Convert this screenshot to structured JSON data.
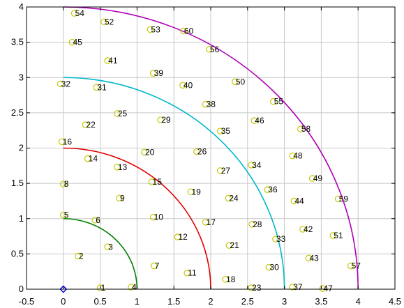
{
  "chart_data": {
    "type": "scatter",
    "title": "",
    "xlabel": "",
    "ylabel": "",
    "xlim": [
      -0.5,
      4.5
    ],
    "ylim": [
      0,
      4
    ],
    "grid": true,
    "x_ticks": [
      -0.5,
      0,
      0.5,
      1,
      1.5,
      2,
      2.5,
      3,
      3.5,
      4,
      4.5
    ],
    "y_ticks": [
      0,
      0.5,
      1,
      1.5,
      2,
      2.5,
      3,
      3.5,
      4
    ],
    "x_tick_labels": [
      "-0.5",
      "0",
      "0.5",
      "1",
      "1.5",
      "2",
      "2.5",
      "3",
      "3.5",
      "4",
      "4.5"
    ],
    "y_tick_labels": [
      "0",
      "0.5",
      "1",
      "1.5",
      "2",
      "2.5",
      "3",
      "3.5",
      "4"
    ],
    "origin_marker": {
      "x": 0,
      "y": 0,
      "shape": "diamond",
      "color": "#0000cc"
    },
    "arcs": [
      {
        "radius": 1,
        "color": "#007f00"
      },
      {
        "radius": 2,
        "color": "#e00000"
      },
      {
        "radius": 3,
        "color": "#00b8c8"
      },
      {
        "radius": 4,
        "color": "#b000b8"
      }
    ],
    "point_color": "#c8c800",
    "points": [
      {
        "label": "1",
        "x": 0.5,
        "y": 0.02
      },
      {
        "label": "2",
        "x": 0.2,
        "y": 0.47
      },
      {
        "label": "3",
        "x": 0.6,
        "y": 0.6
      },
      {
        "label": "4",
        "x": 0.92,
        "y": 0.03
      },
      {
        "label": "5",
        "x": 0.0,
        "y": 1.05
      },
      {
        "label": "6",
        "x": 0.43,
        "y": 0.98
      },
      {
        "label": "7",
        "x": 1.23,
        "y": 0.33
      },
      {
        "label": "8",
        "x": 0.0,
        "y": 1.49
      },
      {
        "label": "9",
        "x": 0.76,
        "y": 1.29
      },
      {
        "label": "10",
        "x": 1.22,
        "y": 1.02
      },
      {
        "label": "11",
        "x": 1.68,
        "y": 0.23
      },
      {
        "label": "12",
        "x": 1.55,
        "y": 0.74
      },
      {
        "label": "13",
        "x": 0.73,
        "y": 1.73
      },
      {
        "label": "14",
        "x": 0.33,
        "y": 1.85
      },
      {
        "label": "15",
        "x": 1.2,
        "y": 1.52
      },
      {
        "label": "16",
        "x": -0.02,
        "y": 2.09
      },
      {
        "label": "17",
        "x": 1.93,
        "y": 0.95
      },
      {
        "label": "18",
        "x": 2.2,
        "y": 0.14
      },
      {
        "label": "19",
        "x": 1.73,
        "y": 1.38
      },
      {
        "label": "20",
        "x": 1.1,
        "y": 1.94
      },
      {
        "label": "21",
        "x": 2.25,
        "y": 0.62
      },
      {
        "label": "22",
        "x": 0.3,
        "y": 2.33
      },
      {
        "label": "23",
        "x": 2.55,
        "y": 0.02
      },
      {
        "label": "24",
        "x": 2.24,
        "y": 1.29
      },
      {
        "label": "25",
        "x": 0.73,
        "y": 2.49
      },
      {
        "label": "26",
        "x": 1.81,
        "y": 1.95
      },
      {
        "label": "27",
        "x": 2.13,
        "y": 1.68
      },
      {
        "label": "28",
        "x": 2.56,
        "y": 0.92
      },
      {
        "label": "29",
        "x": 1.32,
        "y": 2.4
      },
      {
        "label": "30",
        "x": 2.79,
        "y": 0.31
      },
      {
        "label": "31",
        "x": 0.45,
        "y": 2.86
      },
      {
        "label": "32",
        "x": -0.04,
        "y": 2.91
      },
      {
        "label": "33",
        "x": 2.88,
        "y": 0.71
      },
      {
        "label": "34",
        "x": 2.55,
        "y": 1.76
      },
      {
        "label": "35",
        "x": 2.13,
        "y": 2.24
      },
      {
        "label": "36",
        "x": 2.77,
        "y": 1.41
      },
      {
        "label": "37",
        "x": 3.11,
        "y": 0.03
      },
      {
        "label": "38",
        "x": 1.93,
        "y": 2.62
      },
      {
        "label": "39",
        "x": 1.22,
        "y": 3.06
      },
      {
        "label": "40",
        "x": 1.62,
        "y": 2.89
      },
      {
        "label": "41",
        "x": 0.6,
        "y": 3.24
      },
      {
        "label": "42",
        "x": 3.25,
        "y": 0.85
      },
      {
        "label": "43",
        "x": 3.33,
        "y": 0.44
      },
      {
        "label": "44",
        "x": 3.13,
        "y": 1.25
      },
      {
        "label": "45",
        "x": 0.12,
        "y": 3.5
      },
      {
        "label": "46",
        "x": 2.59,
        "y": 2.39
      },
      {
        "label": "47",
        "x": 3.52,
        "y": 0.01
      },
      {
        "label": "48",
        "x": 3.11,
        "y": 1.89
      },
      {
        "label": "49",
        "x": 3.38,
        "y": 1.57
      },
      {
        "label": "50",
        "x": 2.33,
        "y": 2.94
      },
      {
        "label": "51",
        "x": 3.66,
        "y": 0.76
      },
      {
        "label": "52",
        "x": 0.55,
        "y": 3.79
      },
      {
        "label": "53",
        "x": 1.18,
        "y": 3.68
      },
      {
        "label": "54",
        "x": 0.15,
        "y": 3.91
      },
      {
        "label": "55",
        "x": 2.85,
        "y": 2.66
      },
      {
        "label": "56",
        "x": 1.98,
        "y": 3.4
      },
      {
        "label": "57",
        "x": 3.9,
        "y": 0.33
      },
      {
        "label": "58",
        "x": 3.22,
        "y": 2.27
      },
      {
        "label": "59",
        "x": 3.73,
        "y": 1.28
      },
      {
        "label": "60",
        "x": 1.63,
        "y": 3.66
      }
    ]
  }
}
